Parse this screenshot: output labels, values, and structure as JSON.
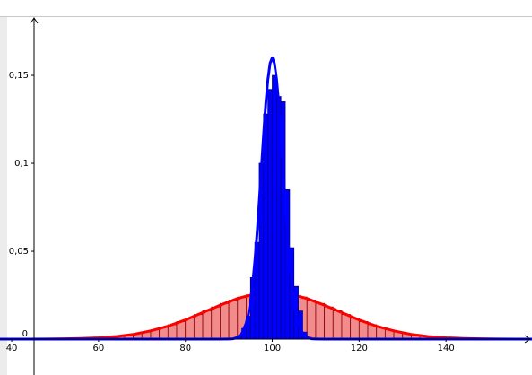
{
  "chart_data": {
    "type": "histogram",
    "xlim": [
      37.3,
      159.8
    ],
    "ylim": [
      -0.0204,
      0.1837
    ],
    "xticks": [
      40,
      60,
      80,
      100,
      120,
      140
    ],
    "yticks": [
      0,
      {
        "value": 0.05,
        "label": "0,05"
      },
      {
        "value": 0.1,
        "label": "0,1"
      },
      {
        "value": 0.15,
        "label": "0,15"
      }
    ],
    "histograms": [
      {
        "color": "#f28b8b",
        "edge_color": "#8b0000",
        "bins": [
          54,
          56,
          58,
          60,
          62,
          64,
          66,
          68,
          70,
          72,
          74,
          76,
          78,
          80,
          82,
          84,
          86,
          88,
          90,
          92,
          94,
          96,
          98,
          100,
          102,
          104,
          106,
          108,
          110,
          112,
          114,
          116,
          118,
          120,
          122,
          124,
          126,
          128,
          130,
          132,
          134,
          136,
          138,
          140,
          142,
          144,
          146
        ],
        "values": [
          0.0003,
          0.0004,
          0.0006,
          0.0009,
          0.0013,
          0.0018,
          0.0024,
          0.0031,
          0.0041,
          0.0053,
          0.0066,
          0.0082,
          0.01,
          0.0119,
          0.014,
          0.0161,
          0.0183,
          0.0203,
          0.0222,
          0.0239,
          0.0252,
          0.0261,
          0.0265,
          0.0265,
          0.0261,
          0.0252,
          0.0239,
          0.0222,
          0.0203,
          0.0183,
          0.0161,
          0.014,
          0.0119,
          0.01,
          0.0082,
          0.0066,
          0.0053,
          0.0041,
          0.0031,
          0.0024,
          0.0018,
          0.0013,
          0.0009,
          0.0006,
          0.0004,
          0.0003
        ]
      },
      {
        "color": "#0000ff",
        "edge_color": "#00008b",
        "bins": [
          91,
          92,
          93,
          94,
          95,
          96,
          97,
          98,
          99,
          100,
          101,
          102,
          103,
          104,
          105,
          106,
          107,
          108,
          109
        ],
        "values": [
          0.0005,
          0.002,
          0.006,
          0.013,
          0.035,
          0.055,
          0.1,
          0.128,
          0.142,
          0.15,
          0.138,
          0.135,
          0.085,
          0.052,
          0.03,
          0.016,
          0.004,
          0.001
        ]
      }
    ],
    "curves": [
      {
        "color": "#ff0000",
        "x": [
          36,
          40,
          44,
          48,
          52,
          56,
          60,
          64,
          68,
          72,
          76,
          80,
          84,
          88,
          92,
          96,
          100,
          104,
          108,
          112,
          116,
          120,
          124,
          128,
          132,
          136,
          140,
          144,
          148,
          152,
          156,
          160,
          164
        ],
        "values": [
          0,
          0,
          0,
          0.0001,
          0.0002,
          0.0004,
          0.0008,
          0.0015,
          0.0027,
          0.0047,
          0.0074,
          0.0109,
          0.0151,
          0.0193,
          0.0231,
          0.0257,
          0.0266,
          0.0257,
          0.0231,
          0.0193,
          0.0151,
          0.0109,
          0.0074,
          0.0047,
          0.0027,
          0.0015,
          0.0008,
          0.0004,
          0.0002,
          0.0001,
          0,
          0,
          0
        ]
      },
      {
        "color": "#0000ff",
        "x": [
          36,
          88,
          90,
          91,
          92,
          93,
          94,
          94.5,
          95,
          95.5,
          96,
          96.5,
          97,
          97.5,
          98,
          98.5,
          99,
          99.5,
          100,
          100.5,
          101,
          101.5,
          102,
          102.5,
          103,
          103.5,
          104,
          104.5,
          105,
          105.5,
          106,
          107,
          108,
          109,
          110,
          112,
          164
        ],
        "values": [
          0,
          0,
          0.0001,
          0.0002,
          0.001,
          0.0032,
          0.009,
          0.0142,
          0.0217,
          0.0317,
          0.0445,
          0.06,
          0.0779,
          0.097,
          0.1162,
          0.1336,
          0.1477,
          0.1568,
          0.16,
          0.1568,
          0.1477,
          0.1336,
          0.1162,
          0.097,
          0.0779,
          0.06,
          0.0445,
          0.0317,
          0.0217,
          0.0142,
          0.009,
          0.0032,
          0.001,
          0.0002,
          0.0001,
          0,
          0
        ]
      }
    ]
  }
}
